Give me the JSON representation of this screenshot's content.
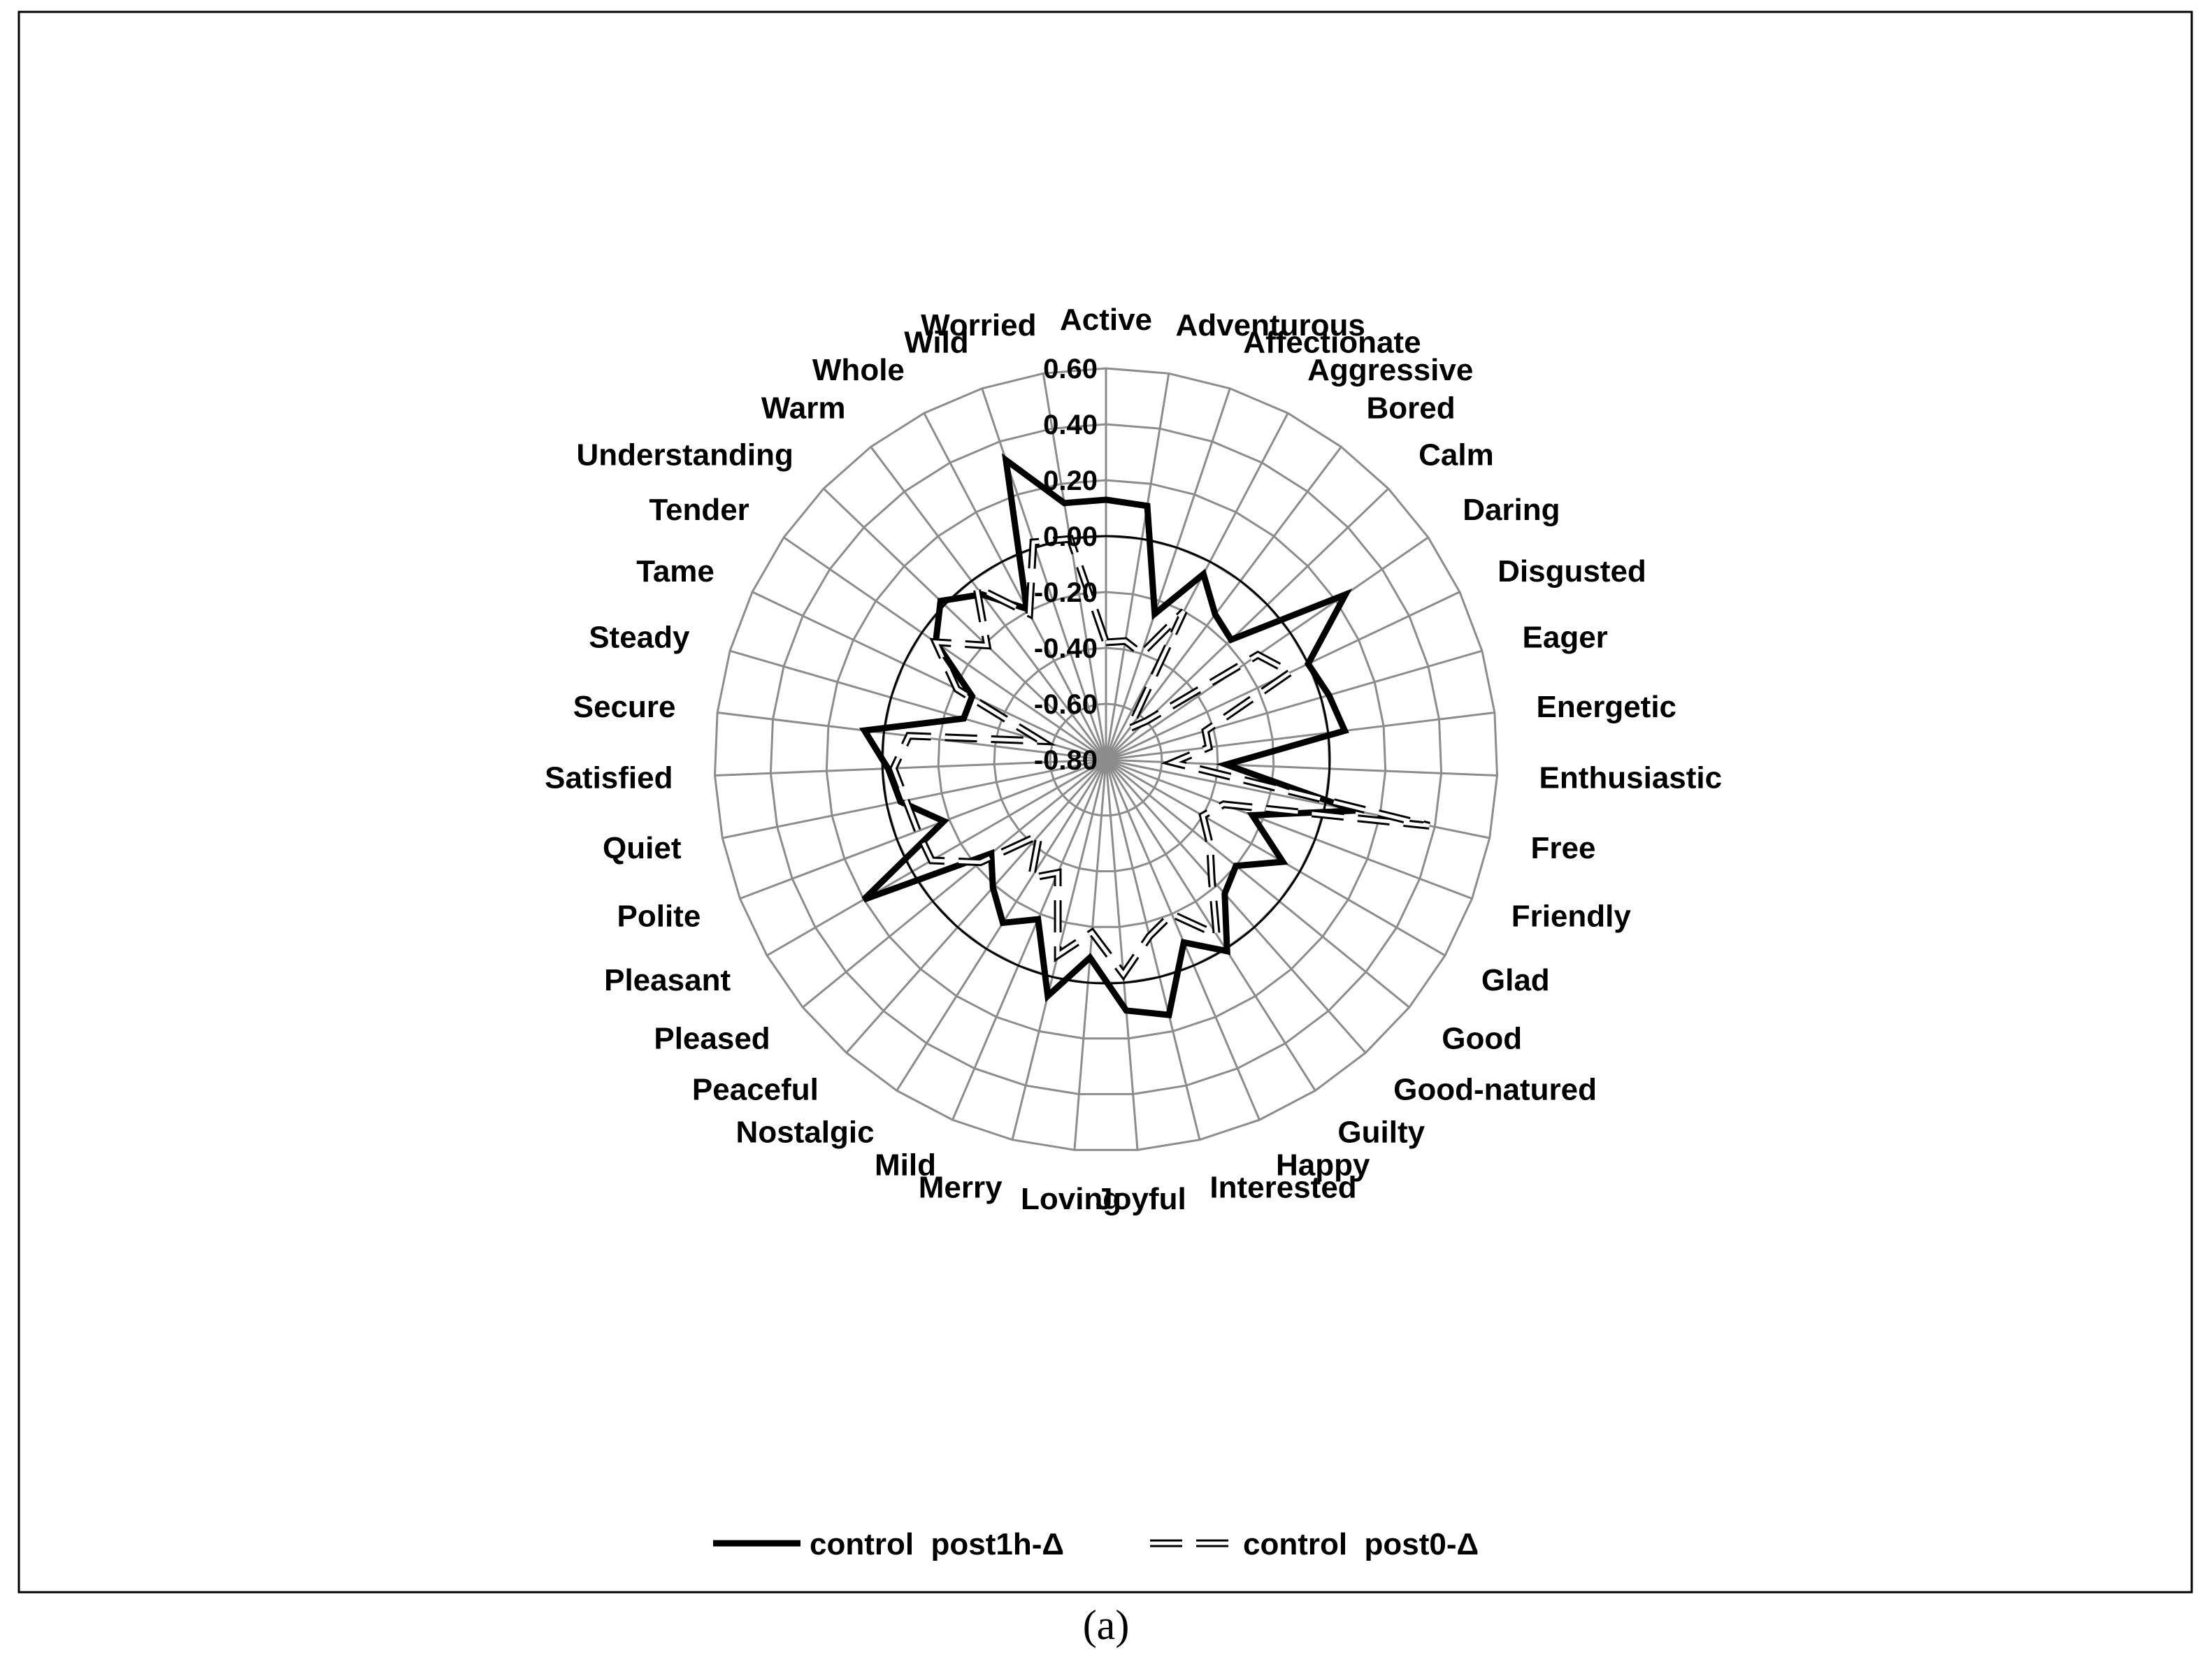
{
  "caption": "(a)",
  "chart_data": {
    "type": "radar",
    "categories": [
      "Active",
      "Adventurous",
      "Affectionate",
      "Aggressive",
      "Bored",
      "Calm",
      "Daring",
      "Disgusted",
      "Eager",
      "Energetic",
      "Enthusiastic",
      "Free",
      "Friendly",
      "Glad",
      "Good",
      "Good-natured",
      "Guilty",
      "Happy",
      "Interested",
      "Joyful",
      "Loving",
      "Merry",
      "Mild",
      "Nostalgic",
      "Peaceful",
      "Pleased",
      "Pleasant",
      "Polite",
      "Quiet",
      "Satisfied",
      "Secure",
      "Steady",
      "Tame",
      "Tender",
      "Understanding",
      "Warm",
      "Whole",
      "Wild",
      "Worried"
    ],
    "ticks": [
      "0.60",
      "0.40",
      "0.20",
      "0.00",
      "-0.20",
      "-0.40",
      "-0.60",
      "-0.80"
    ],
    "rmin": -0.8,
    "rmax": 0.6,
    "tick_step": 0.2,
    "reference_circle": 0.0,
    "grid": "polygon",
    "legend_position": "bottom",
    "series": [
      {
        "name": "control  post1h-Δ",
        "style": "solid",
        "color": "#000000",
        "values": [
          0.13,
          0.12,
          -0.25,
          -0.05,
          -0.15,
          -0.18,
          0.24,
          0.0,
          0.03,
          0.06,
          -0.37,
          0.11,
          -0.24,
          -0.07,
          -0.2,
          -0.16,
          0.01,
          -0.09,
          0.14,
          0.1,
          -0.09,
          0.07,
          -0.18,
          -0.11,
          -0.19,
          -0.27,
          0.2,
          -0.18,
          -0.05,
          -0.02,
          0.07,
          -0.27,
          -0.27,
          -0.06,
          0.02,
          -0.06,
          -0.19,
          0.33,
          0.13
        ]
      },
      {
        "name": "control  post0-Δ",
        "style": "double-dashed",
        "color": "#000000",
        "values": [
          -0.38,
          -0.37,
          -0.4,
          -0.2,
          -0.66,
          -0.6,
          -0.14,
          -0.07,
          -0.43,
          -0.43,
          -0.56,
          0.38,
          -0.35,
          -0.4,
          -0.32,
          -0.23,
          -0.06,
          -0.2,
          -0.15,
          -0.03,
          -0.18,
          -0.08,
          -0.36,
          -0.3,
          -0.44,
          -0.22,
          -0.08,
          -0.08,
          -0.07,
          -0.04,
          -0.09,
          -0.56,
          -0.21,
          -0.06,
          -0.21,
          -0.03,
          -0.21,
          0.02,
          0.0
        ]
      }
    ]
  }
}
